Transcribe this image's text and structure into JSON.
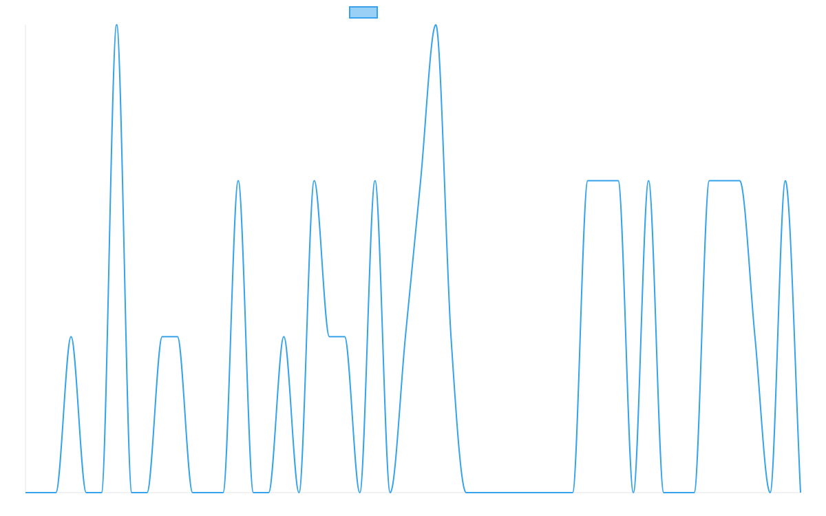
{
  "chart_data": {
    "type": "line",
    "title": "",
    "xlabel": "",
    "ylabel": "",
    "legend": {
      "placement": "top-center",
      "label": ""
    },
    "grid": false,
    "xlim": [
      0,
      51
    ],
    "ylim": [
      0,
      3
    ],
    "series": [
      {
        "name": "",
        "color": "#36a2eb",
        "fill": "#9ad0f5",
        "smooth": true,
        "x": [
          0,
          1,
          2,
          3,
          4,
          5,
          6,
          7,
          8,
          9,
          10,
          11,
          12,
          13,
          14,
          15,
          16,
          17,
          18,
          19,
          20,
          21,
          22,
          23,
          24,
          25,
          26,
          27,
          28,
          29,
          30,
          31,
          32,
          33,
          34,
          35,
          36,
          37,
          38,
          39,
          40,
          41,
          42,
          43,
          44,
          45,
          46,
          47,
          48,
          49,
          50,
          51
        ],
        "values": [
          0,
          0,
          0,
          1,
          0,
          0,
          3,
          0,
          0,
          1,
          1,
          0,
          0,
          0,
          2,
          0,
          0,
          1,
          0,
          2,
          1,
          1,
          0,
          2,
          0,
          1,
          2,
          3,
          1,
          0,
          0,
          0,
          0,
          0,
          0,
          0,
          0,
          2,
          2,
          2,
          0,
          2,
          0,
          0,
          0,
          2,
          2,
          2,
          1,
          0,
          2,
          0
        ]
      }
    ]
  }
}
